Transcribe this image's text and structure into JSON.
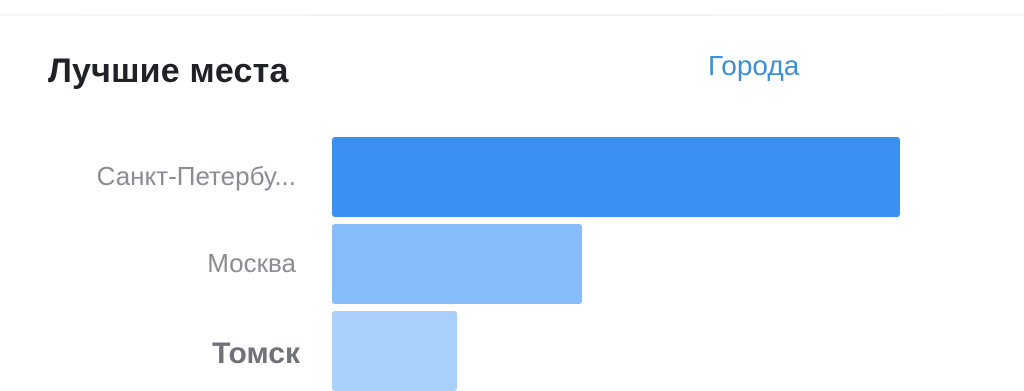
{
  "header": {
    "title": "Лучшие места",
    "filter_link": "Города"
  },
  "chart_data": {
    "type": "bar",
    "orientation": "horizontal",
    "categories": [
      "Санкт-Петербу...",
      "Москва",
      "Томск"
    ],
    "values": [
      100,
      44,
      22
    ],
    "highlighted": "Томск",
    "colors": [
      "#3b8ff0",
      "#86bdfa",
      "#a9d0fb"
    ]
  }
}
